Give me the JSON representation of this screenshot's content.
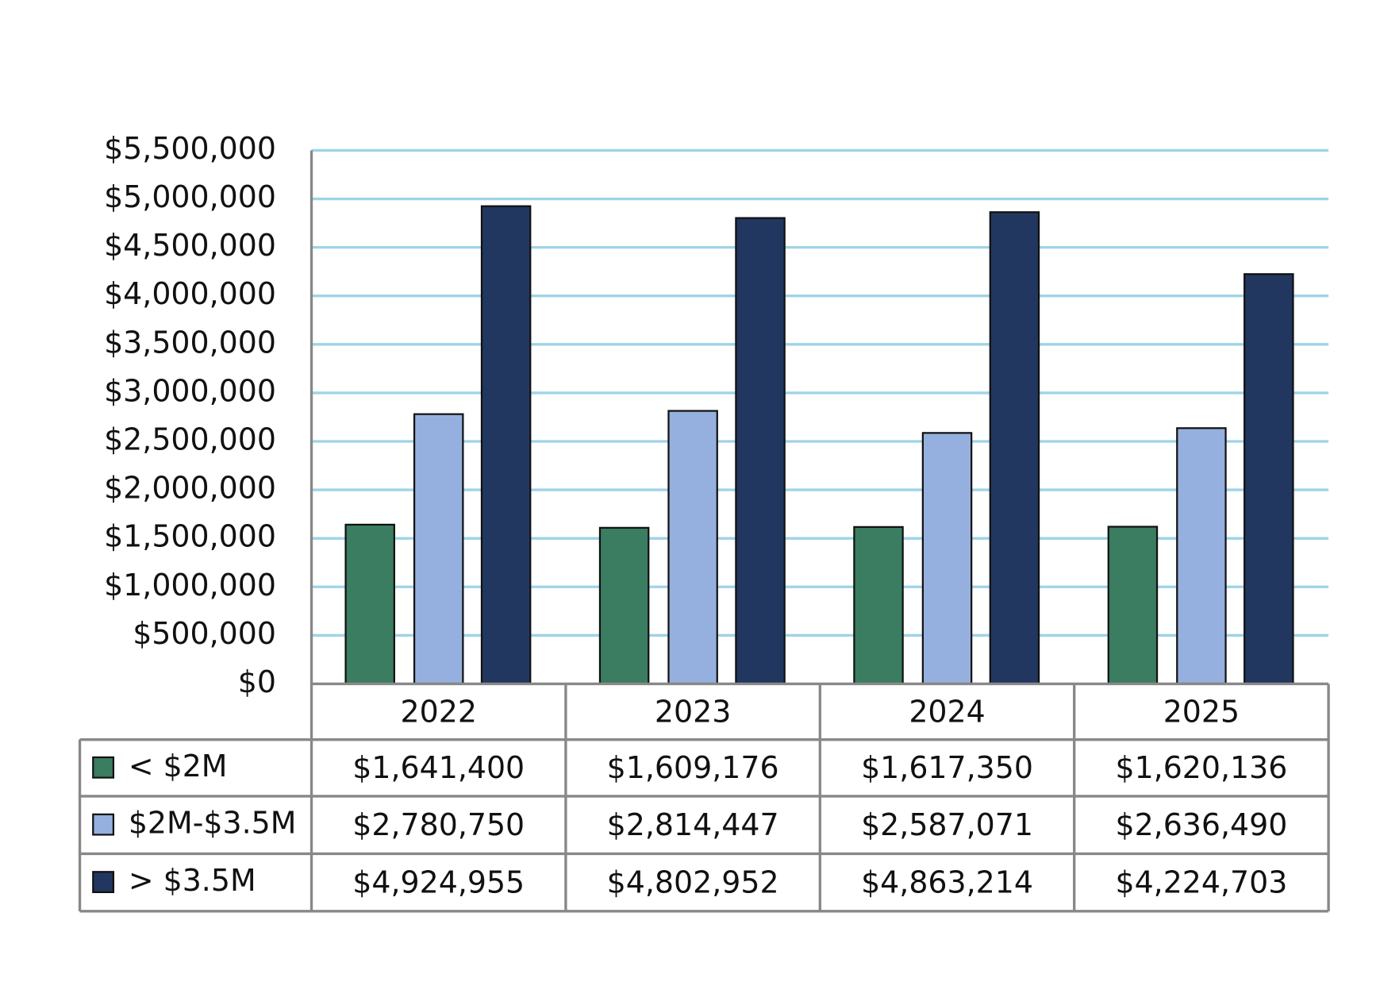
{
  "chart_data": {
    "type": "bar",
    "categories": [
      "2022",
      "2023",
      "2024",
      "2025"
    ],
    "series": [
      {
        "name": "< $2M",
        "color": "#3a7d60",
        "values": [
          1641400,
          1609176,
          1617350,
          1620136
        ],
        "value_labels": [
          "$1,641,400",
          "$1,609,176",
          "$1,617,350",
          "$1,620,136"
        ]
      },
      {
        "name": "$2M-$3.5M",
        "color": "#95b0de",
        "values": [
          2780750,
          2814447,
          2587071,
          2636490
        ],
        "value_labels": [
          "$2,780,750",
          "$2,814,447",
          "$2,587,071",
          "$2,636,490"
        ]
      },
      {
        "name": "> $3.5M",
        "color": "#22375f",
        "values": [
          4924955,
          4802952,
          4863214,
          4224703
        ],
        "value_labels": [
          "$4,924,955",
          "$4,802,952",
          "$4,863,214",
          "$4,224,703"
        ]
      }
    ],
    "ylim": [
      0,
      5500000
    ],
    "yticks": [
      {
        "value": 0,
        "label": "$0"
      },
      {
        "value": 500000,
        "label": "$500,000"
      },
      {
        "value": 1000000,
        "label": "$1,000,000"
      },
      {
        "value": 1500000,
        "label": "$1,500,000"
      },
      {
        "value": 2000000,
        "label": "$2,000,000"
      },
      {
        "value": 2500000,
        "label": "$2,500,000"
      },
      {
        "value": 3000000,
        "label": "$3,000,000"
      },
      {
        "value": 3500000,
        "label": "$3,500,000"
      },
      {
        "value": 4000000,
        "label": "$4,000,000"
      },
      {
        "value": 4500000,
        "label": "$4,500,000"
      },
      {
        "value": 5000000,
        "label": "$5,000,000"
      },
      {
        "value": 5500000,
        "label": "$5,500,000"
      }
    ],
    "grid": true,
    "data_table": true
  }
}
